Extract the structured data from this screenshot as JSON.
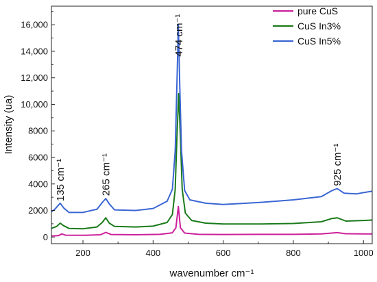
{
  "chart_data": {
    "type": "line",
    "title": "",
    "xlabel": "wavenumber cm⁻¹",
    "ylabel": "Intensity (ua)",
    "xlim": [
      110,
      1025
    ],
    "ylim": [
      -500,
      17400
    ],
    "x_ticks": [
      200,
      400,
      600,
      800,
      1000
    ],
    "y_ticks": [
      0,
      2000,
      4000,
      6000,
      8000,
      10000,
      12000,
      14000,
      16000
    ],
    "x_tick_labels": [
      "200",
      "400",
      "600",
      "800",
      "1000"
    ],
    "y_tick_labels": [
      "0",
      "2000",
      "4000",
      "6000",
      "8000",
      "10,000",
      "12,000",
      "14,000",
      "16,000"
    ],
    "grid": false,
    "legend_position": "top-right",
    "series": [
      {
        "name": "pure CuS",
        "color": "#cc1f9a",
        "points": [
          [
            110,
            80
          ],
          [
            130,
            110
          ],
          [
            140,
            230
          ],
          [
            150,
            140
          ],
          [
            200,
            130
          ],
          [
            250,
            170
          ],
          [
            265,
            350
          ],
          [
            280,
            190
          ],
          [
            350,
            170
          ],
          [
            420,
            200
          ],
          [
            455,
            320
          ],
          [
            465,
            700
          ],
          [
            472,
            2300
          ],
          [
            478,
            700
          ],
          [
            490,
            300
          ],
          [
            530,
            200
          ],
          [
            600,
            190
          ],
          [
            700,
            200
          ],
          [
            800,
            200
          ],
          [
            880,
            240
          ],
          [
            925,
            330
          ],
          [
            950,
            250
          ],
          [
            1000,
            230
          ],
          [
            1025,
            240
          ]
        ]
      },
      {
        "name": "CuS In3%",
        "color": "#1a7a1a",
        "points": [
          [
            110,
            650
          ],
          [
            125,
            800
          ],
          [
            135,
            1050
          ],
          [
            145,
            850
          ],
          [
            160,
            650
          ],
          [
            200,
            620
          ],
          [
            240,
            760
          ],
          [
            255,
            1100
          ],
          [
            265,
            1450
          ],
          [
            275,
            1050
          ],
          [
            290,
            800
          ],
          [
            350,
            760
          ],
          [
            400,
            820
          ],
          [
            440,
            1100
          ],
          [
            455,
            1700
          ],
          [
            463,
            3600
          ],
          [
            468,
            7500
          ],
          [
            473,
            10800
          ],
          [
            478,
            7500
          ],
          [
            483,
            3600
          ],
          [
            492,
            1800
          ],
          [
            510,
            1250
          ],
          [
            550,
            1050
          ],
          [
            600,
            980
          ],
          [
            700,
            980
          ],
          [
            800,
            1020
          ],
          [
            880,
            1150
          ],
          [
            910,
            1400
          ],
          [
            925,
            1450
          ],
          [
            950,
            1200
          ],
          [
            1000,
            1250
          ],
          [
            1025,
            1280
          ]
        ]
      },
      {
        "name": "CuS In5%",
        "color": "#3a66d4",
        "points": [
          [
            110,
            1900
          ],
          [
            120,
            2100
          ],
          [
            135,
            2550
          ],
          [
            145,
            2200
          ],
          [
            160,
            1850
          ],
          [
            200,
            1850
          ],
          [
            240,
            2100
          ],
          [
            255,
            2600
          ],
          [
            265,
            2900
          ],
          [
            275,
            2500
          ],
          [
            290,
            2050
          ],
          [
            350,
            2000
          ],
          [
            400,
            2150
          ],
          [
            440,
            2700
          ],
          [
            455,
            3600
          ],
          [
            463,
            6500
          ],
          [
            468,
            11500
          ],
          [
            472,
            16000
          ],
          [
            476,
            11500
          ],
          [
            481,
            6500
          ],
          [
            490,
            3500
          ],
          [
            505,
            2800
          ],
          [
            550,
            2550
          ],
          [
            600,
            2450
          ],
          [
            700,
            2600
          ],
          [
            800,
            2800
          ],
          [
            880,
            3050
          ],
          [
            910,
            3500
          ],
          [
            925,
            3650
          ],
          [
            945,
            3300
          ],
          [
            980,
            3250
          ],
          [
            1000,
            3350
          ],
          [
            1025,
            3450
          ]
        ]
      }
    ],
    "annotations": [
      {
        "text": "135 cm⁻¹",
        "x": 135,
        "y": 2700
      },
      {
        "text": "265 cm⁻¹",
        "x": 265,
        "y": 3100
      },
      {
        "text": "474 cm⁻¹",
        "x": 474,
        "y": 13600
      },
      {
        "text": "925 cm⁻¹",
        "x": 925,
        "y": 3850
      }
    ]
  }
}
